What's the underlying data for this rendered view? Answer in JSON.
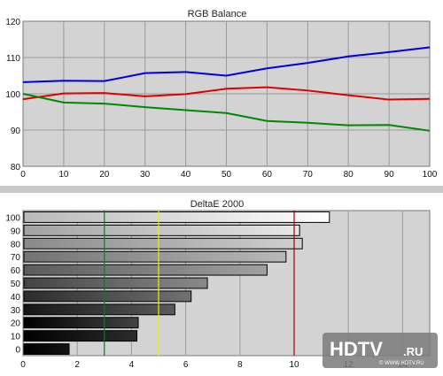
{
  "chart_data": [
    {
      "type": "line",
      "title": "RGB Balance",
      "xlabel": "",
      "ylabel": "",
      "x": [
        0,
        10,
        20,
        30,
        40,
        50,
        60,
        70,
        80,
        90,
        100
      ],
      "xlim": [
        0,
        100
      ],
      "ylim": [
        80,
        120
      ],
      "x_ticks": [
        0,
        10,
        20,
        30,
        40,
        50,
        60,
        70,
        80,
        90,
        100
      ],
      "y_ticks": [
        80,
        90,
        100,
        110,
        120
      ],
      "grid": true,
      "series": [
        {
          "color": "#0000dd",
          "values": [
            103.2,
            103.6,
            103.5,
            105.7,
            106.0,
            105.0,
            107.0,
            108.5,
            110.3,
            111.5,
            112.8
          ]
        },
        {
          "color": "#dd0000",
          "values": [
            98.5,
            100.1,
            100.2,
            99.3,
            99.9,
            101.4,
            101.8,
            100.9,
            99.6,
            98.4,
            98.6
          ]
        },
        {
          "color": "#008800",
          "values": [
            100.0,
            97.6,
            97.3,
            96.3,
            95.5,
            94.7,
            92.5,
            92.0,
            91.3,
            91.4,
            89.8
          ]
        }
      ],
      "colors": {
        "plot_bg": "#d3d3d3",
        "grid": "#999999"
      }
    },
    {
      "type": "bar",
      "orientation": "horizontal",
      "title": "DeltaE 2000",
      "xlabel": "",
      "ylabel": "",
      "categories": [
        "0",
        "10",
        "20",
        "30",
        "40",
        "50",
        "60",
        "70",
        "80",
        "90",
        "100"
      ],
      "values": [
        1.7,
        4.2,
        4.25,
        5.6,
        6.2,
        6.8,
        9.0,
        9.7,
        10.3,
        10.2,
        11.3
      ],
      "xlim": [
        0,
        15
      ],
      "x_ticks": [
        0,
        2,
        4,
        6,
        8,
        10,
        12,
        14
      ],
      "grid": true,
      "reference_lines": [
        {
          "x": 3,
          "color": "#008800"
        },
        {
          "x": 5,
          "color": "#eeee00"
        },
        {
          "x": 10,
          "color": "#aa0000"
        }
      ],
      "colors": {
        "plot_bg": "#d3d3d3",
        "grid": "#999999"
      }
    }
  ],
  "watermark": {
    "text": "HDTV",
    "domain": ".RU",
    "subtext": "© WWW.HDTV.RU"
  }
}
